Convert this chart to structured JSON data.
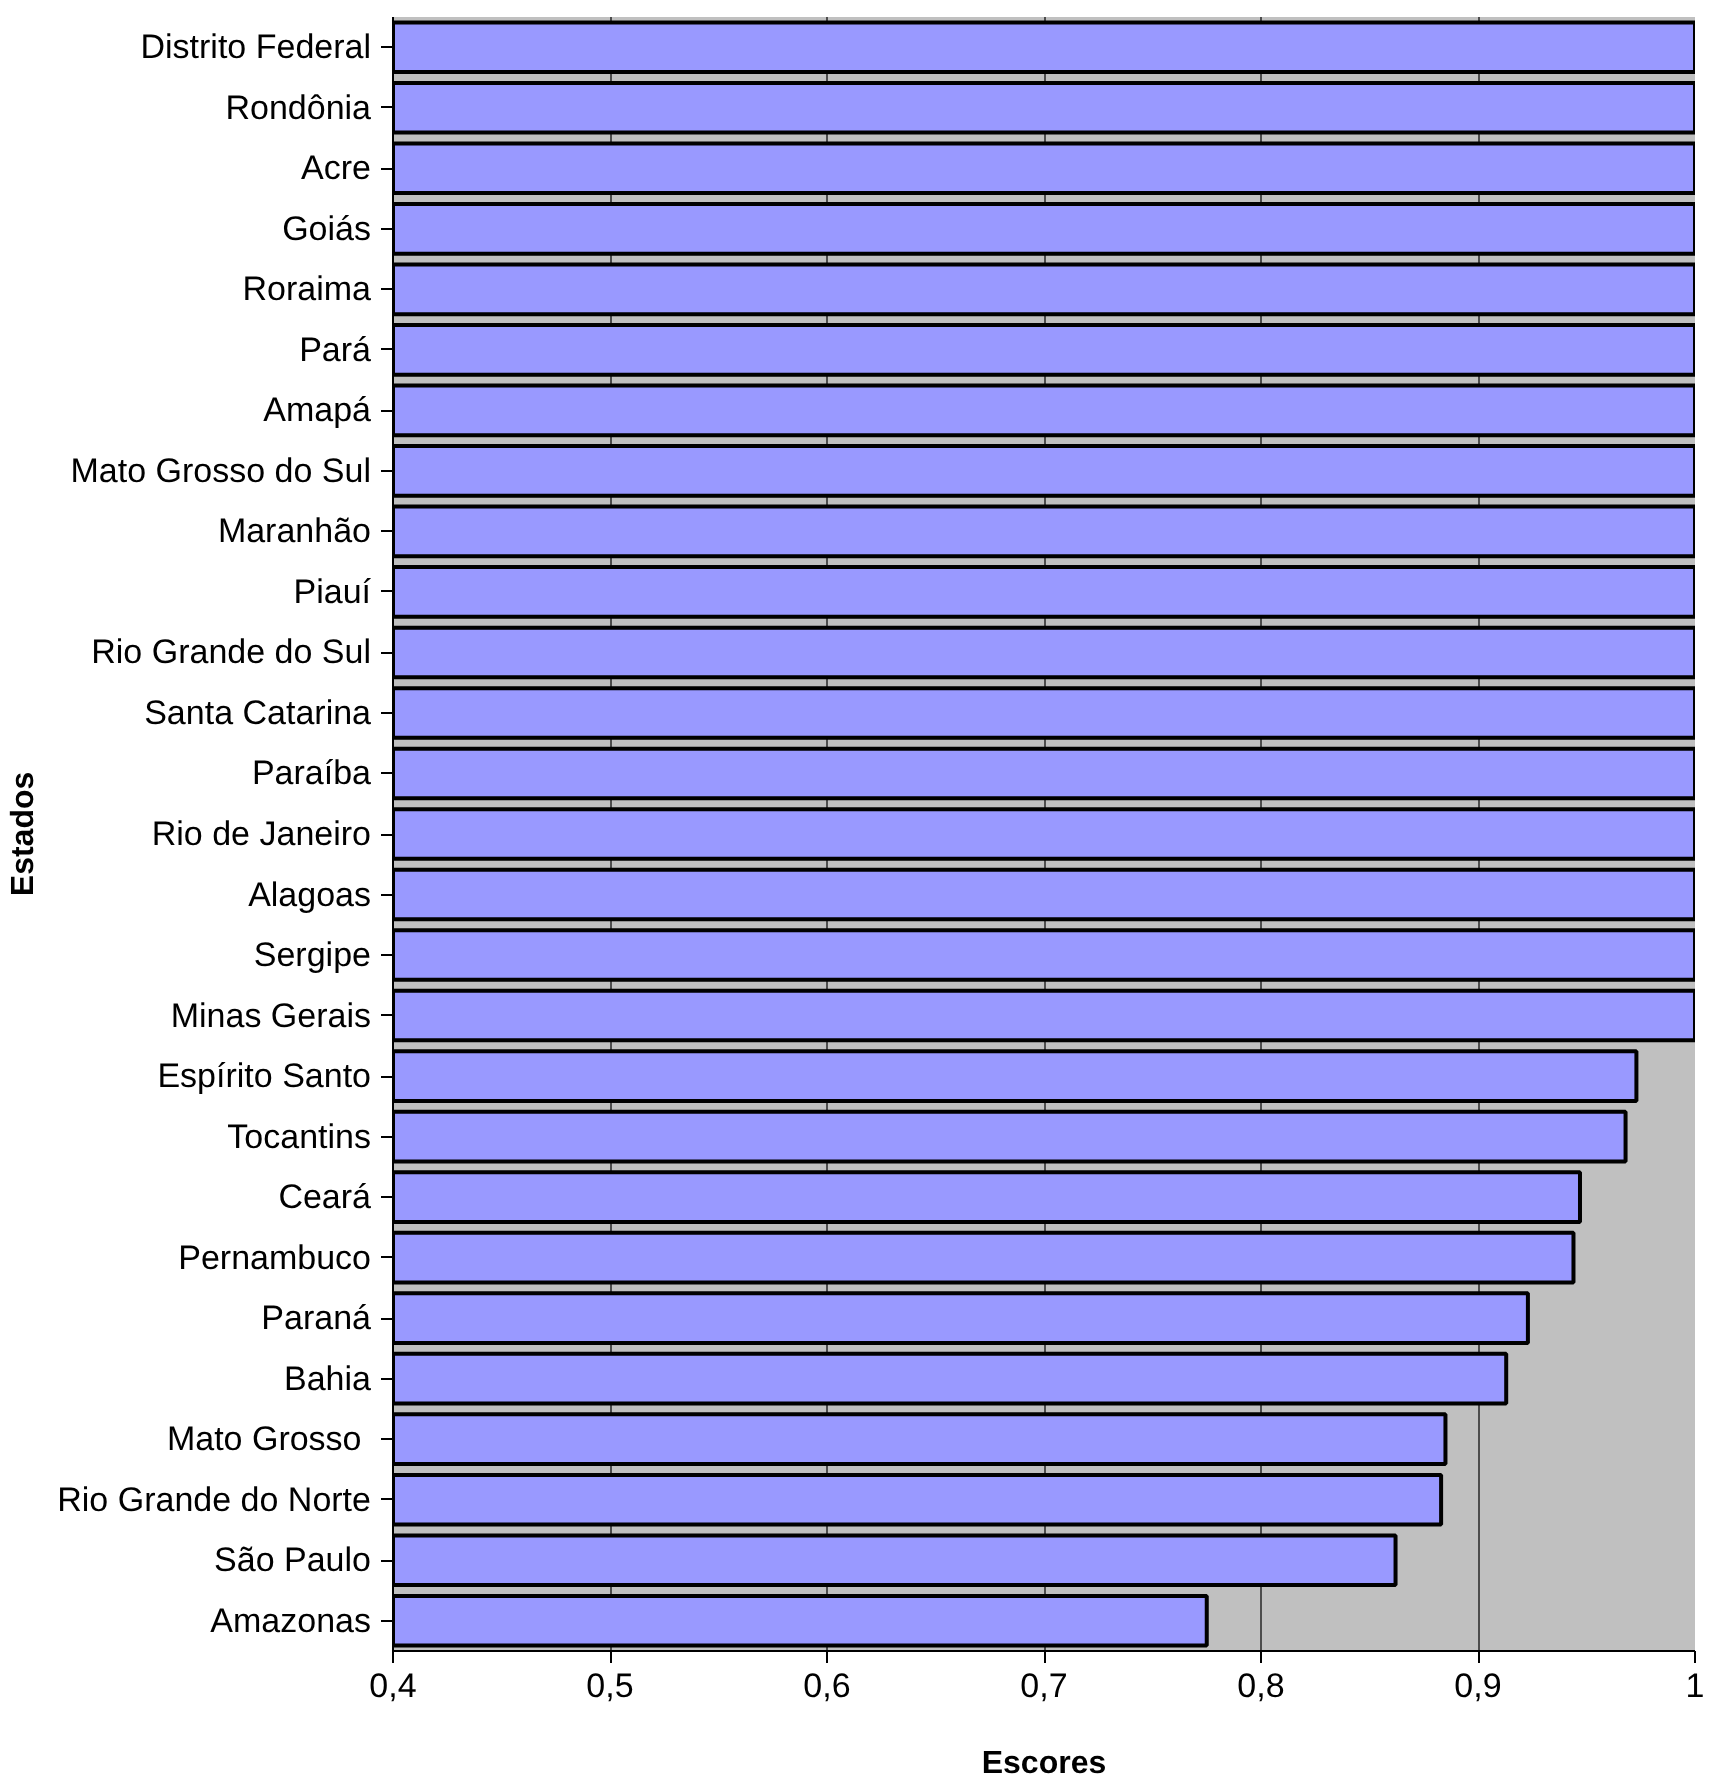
{
  "chart_data": {
    "type": "bar",
    "orientation": "horizontal",
    "xlabel": "Escores",
    "ylabel": "Estados",
    "categories": [
      "Distrito Federal",
      "Rondônia",
      "Acre",
      "Goiás",
      "Roraima",
      "Pará",
      "Amapá",
      "Mato Grosso do Sul",
      "Maranhão",
      "Piauí",
      "Rio Grande do Sul",
      "Santa Catarina",
      "Paraíba",
      "Rio de Janeiro",
      "Alagoas",
      "Sergipe",
      "Minas Gerais",
      "Espírito Santo",
      "Tocantins",
      "Ceará",
      "Pernambuco",
      "Paraná",
      "Bahia",
      "Mato Grosso ",
      "Rio Grande do Norte",
      "São Paulo",
      "Amazonas"
    ],
    "values": [
      1,
      1,
      1,
      1,
      1,
      1,
      1,
      1,
      1,
      1,
      1,
      1,
      1,
      1,
      1,
      1,
      1,
      0.973,
      0.968,
      0.947,
      0.944,
      0.923,
      0.913,
      0.885,
      0.883,
      0.862,
      0.775
    ],
    "color": "#9999ff",
    "xlim": [
      0.4,
      1
    ],
    "xticks": [
      {
        "value": 0.4,
        "label": "0,4"
      },
      {
        "value": 0.5,
        "label": "0,5"
      },
      {
        "value": 0.6,
        "label": "0,6"
      },
      {
        "value": 0.7,
        "label": "0,7"
      },
      {
        "value": 0.8,
        "label": "0,8"
      },
      {
        "value": 0.9,
        "label": "0,9"
      },
      {
        "value": 1,
        "label": "1"
      }
    ],
    "grid": "x"
  }
}
